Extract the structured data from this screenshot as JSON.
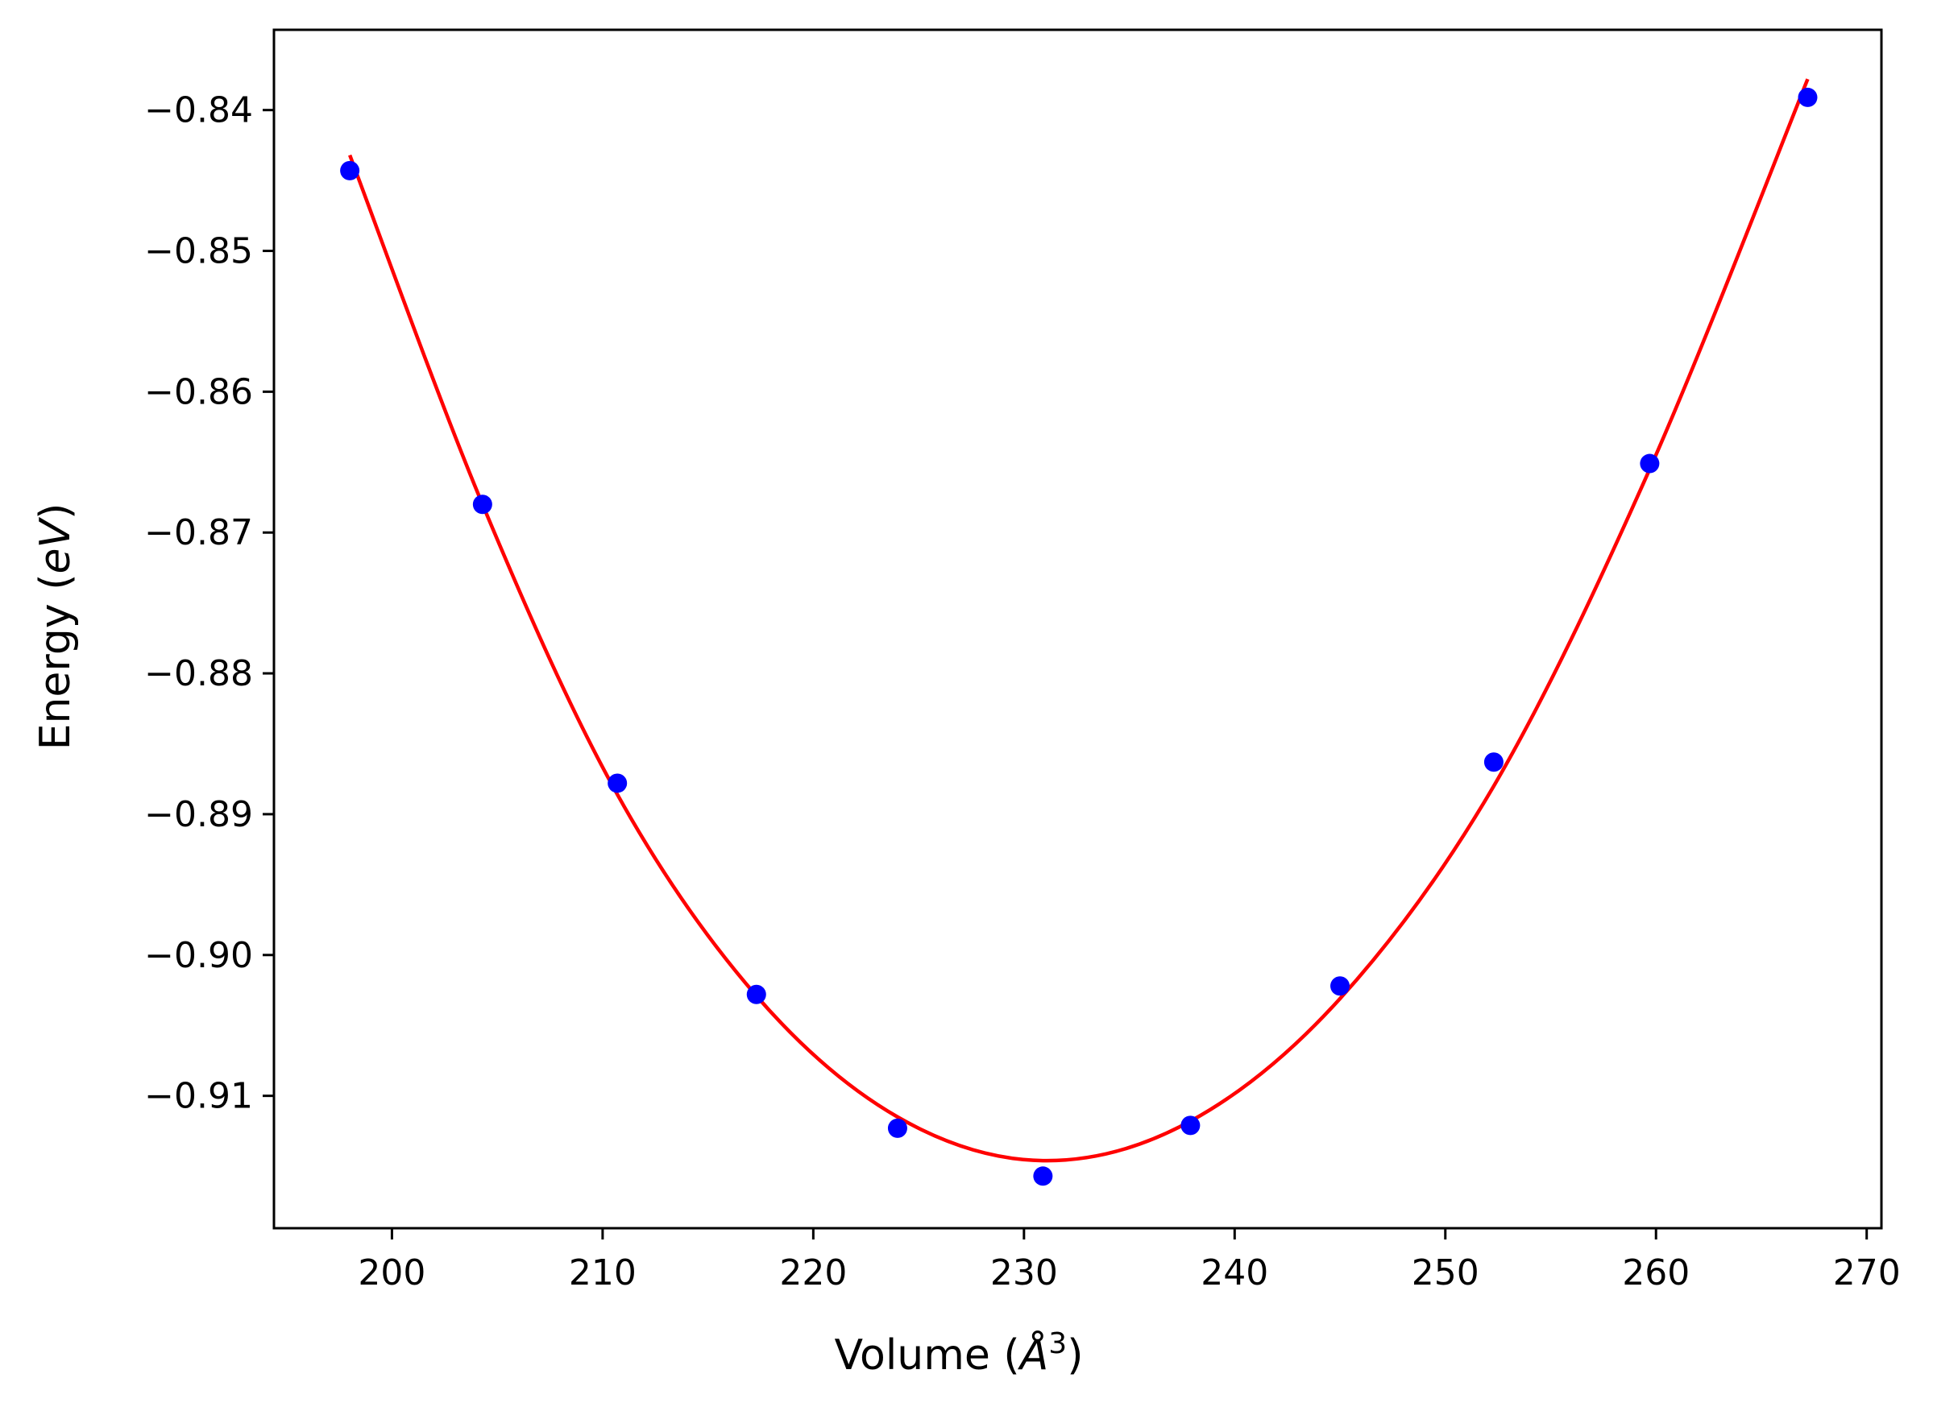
{
  "chart_data": {
    "type": "scatter",
    "xlabel": "Volume (Å³)",
    "ylabel": "Energy (eV)",
    "xlim": [
      194.4,
      270.7
    ],
    "ylim": [
      -0.9194,
      -0.8343
    ],
    "x_ticks": [
      200,
      210,
      220,
      230,
      240,
      250,
      260,
      270
    ],
    "y_ticks": [
      -0.84,
      -0.85,
      -0.86,
      -0.87,
      -0.88,
      -0.89,
      -0.9,
      -0.91
    ],
    "x_tick_labels": [
      "200",
      "210",
      "220",
      "230",
      "240",
      "250",
      "260",
      "270"
    ],
    "y_tick_labels": [
      "−0.84",
      "−0.85",
      "−0.86",
      "−0.87",
      "−0.88",
      "−0.89",
      "−0.90",
      "−0.91"
    ],
    "grid": false,
    "series": [
      {
        "kind": "points",
        "color": "#0000ff",
        "x": [
          198.0,
          204.3,
          210.7,
          217.3,
          224.0,
          230.9,
          237.9,
          245.0,
          252.3,
          259.7,
          267.2
        ],
        "y": [
          -0.8443,
          -0.868,
          -0.8878,
          -0.9028,
          -0.9123,
          -0.9157,
          -0.9121,
          -0.9022,
          -0.8863,
          -0.8651,
          -0.8391
        ]
      },
      {
        "kind": "fit-curve",
        "color": "#ff0000",
        "x": [
          198.0,
          204.3,
          210.7,
          217.3,
          224.0,
          230.9,
          237.9,
          245.0,
          252.3,
          259.7,
          267.2
        ],
        "y": [
          -0.8432,
          -0.868,
          -0.8886,
          -0.9029,
          -0.9115,
          -0.9146,
          -0.9118,
          -0.9031,
          -0.888,
          -0.8655,
          -0.8378
        ]
      }
    ]
  }
}
